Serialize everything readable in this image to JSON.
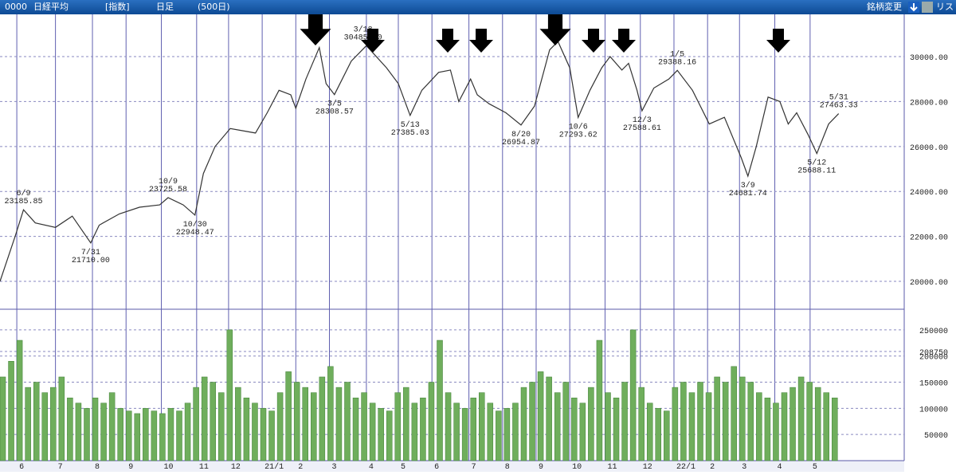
{
  "header": {
    "code": "0000",
    "name": "日経平均",
    "kind": "[指数]",
    "period": "日足",
    "span": "(500日)",
    "button": "銘柄変更",
    "list": "リスト"
  },
  "chart_data": [
    {
      "type": "line",
      "color": "#333333",
      "xlim": [
        0,
        538
      ],
      "ylim": [
        18760,
        31880
      ],
      "yticks": [
        {
          "value": 20000,
          "label": "20000.00"
        },
        {
          "value": 22000,
          "label": "22000.00"
        },
        {
          "value": 24000,
          "label": "24000.00"
        },
        {
          "value": 26000,
          "label": "26000.00"
        },
        {
          "value": 28000,
          "label": "28000.00"
        },
        {
          "value": 30000,
          "label": "30000.00"
        }
      ],
      "grid": true,
      "x": [
        0,
        9,
        14,
        21,
        33,
        43,
        54,
        59,
        71,
        83,
        95,
        100,
        109,
        116,
        121,
        128,
        137,
        152,
        159,
        166,
        173,
        176,
        182,
        190,
        194,
        199,
        209,
        218,
        230,
        237,
        244,
        251,
        261,
        268,
        273,
        280,
        284,
        291,
        301,
        310,
        318,
        327,
        332,
        339,
        344,
        351,
        358,
        363,
        370,
        374,
        379,
        382,
        389,
        398,
        403,
        412,
        422,
        431,
        441,
        445,
        450,
        457,
        464,
        469,
        474,
        481,
        486,
        493,
        499
      ],
      "values": [
        20000,
        22000,
        23185,
        22600,
        22400,
        22900,
        21710,
        22500,
        23000,
        23300,
        23400,
        23725,
        23400,
        22948,
        24800,
        26000,
        26800,
        26600,
        27500,
        28500,
        28300,
        27700,
        29000,
        30400,
        28800,
        28308,
        29800,
        30485,
        29500,
        28800,
        27385,
        28500,
        29300,
        29400,
        28000,
        29000,
        28300,
        27900,
        27500,
        26954,
        27800,
        30300,
        30670,
        29500,
        27293,
        28500,
        29500,
        30000,
        29400,
        29700,
        28500,
        27588,
        28600,
        29000,
        29388,
        28500,
        27000,
        27300,
        25500,
        24681,
        26000,
        28200,
        28000,
        27000,
        27500,
        26500,
        25688,
        27000,
        27463
      ],
      "annotations": [
        {
          "x": 14,
          "date": "6/9",
          "value": 23185.85,
          "label": "23185.85",
          "side": "above"
        },
        {
          "x": 54,
          "date": "7/31",
          "value": 21710,
          "label": "21710.00",
          "side": "below"
        },
        {
          "x": 100,
          "date": "10/9",
          "value": 23725.58,
          "label": "23725.58",
          "side": "above"
        },
        {
          "x": 116,
          "date": "10/30",
          "value": 22948.47,
          "label": "22948.47",
          "side": "below"
        },
        {
          "x": 199,
          "date": "3/5",
          "value": 28308.57,
          "label": "28308.57",
          "side": "below"
        },
        {
          "x": 216,
          "date": "3/18",
          "value": 30485,
          "label": "30485.00",
          "side": "above"
        },
        {
          "x": 244,
          "date": "5/13",
          "value": 27385.03,
          "label": "27385.03",
          "side": "below"
        },
        {
          "x": 310,
          "date": "8/20",
          "value": 26954.87,
          "label": "26954.87",
          "side": "below"
        },
        {
          "x": 344,
          "date": "10/6",
          "value": 27293.62,
          "label": "27293.62",
          "side": "below"
        },
        {
          "x": 382,
          "date": "12/3",
          "value": 27588.61,
          "label": "27588.61",
          "side": "below"
        },
        {
          "x": 403,
          "date": "1/5",
          "value": 29388.16,
          "label": "29388.16",
          "side": "above"
        },
        {
          "x": 445,
          "date": "3/9",
          "value": 24681.74,
          "label": "24681.74",
          "side": "below"
        },
        {
          "x": 486,
          "date": "5/12",
          "value": 25688.11,
          "label": "25688.11",
          "side": "below"
        },
        {
          "x": 499,
          "date": "5/31",
          "value": 27463.33,
          "label": "27463.33",
          "side": "above"
        }
      ]
    },
    {
      "type": "bar",
      "color": "#6fae5c",
      "xlim": [
        0,
        538
      ],
      "ylim": [
        0,
        289400
      ],
      "yticks": [
        50000,
        100000,
        150000,
        200000,
        208750,
        250000
      ],
      "grid": true,
      "xticks": [
        {
          "value": 10,
          "label": "6"
        },
        {
          "value": 33,
          "label": "7"
        },
        {
          "value": 55,
          "label": "8"
        },
        {
          "value": 75,
          "label": "9"
        },
        {
          "value": 96,
          "label": "10"
        },
        {
          "value": 117,
          "label": "11"
        },
        {
          "value": 136,
          "label": "12"
        },
        {
          "value": 156,
          "label": "21/1"
        },
        {
          "value": 176,
          "label": "2"
        },
        {
          "value": 196,
          "label": "3"
        },
        {
          "value": 218,
          "label": "4"
        },
        {
          "value": 237,
          "label": "5"
        },
        {
          "value": 257,
          "label": "6"
        },
        {
          "value": 279,
          "label": "7"
        },
        {
          "value": 299,
          "label": "8"
        },
        {
          "value": 319,
          "label": "9"
        },
        {
          "value": 339,
          "label": "10"
        },
        {
          "value": 360,
          "label": "11"
        },
        {
          "value": 381,
          "label": "12"
        },
        {
          "value": 401,
          "label": "22/1"
        },
        {
          "value": 421,
          "label": "2"
        },
        {
          "value": 440,
          "label": "3"
        },
        {
          "value": 461,
          "label": "4"
        },
        {
          "value": 482,
          "label": "5"
        }
      ],
      "x": [
        0,
        5,
        10,
        15,
        20,
        25,
        30,
        35,
        40,
        45,
        50,
        55,
        60,
        65,
        70,
        75,
        80,
        85,
        90,
        95,
        100,
        105,
        110,
        115,
        120,
        125,
        130,
        135,
        140,
        145,
        150,
        155,
        160,
        165,
        170,
        175,
        180,
        185,
        190,
        195,
        200,
        205,
        210,
        215,
        220,
        225,
        230,
        235,
        240,
        245,
        250,
        255,
        260,
        265,
        270,
        275,
        280,
        285,
        290,
        295,
        300,
        305,
        310,
        315,
        320,
        325,
        330,
        335,
        340,
        345,
        350,
        355,
        360,
        365,
        370,
        375,
        380,
        385,
        390,
        395,
        400,
        405,
        410,
        415,
        420,
        425,
        430,
        435,
        440,
        445,
        450,
        455,
        460,
        465,
        470,
        475,
        480,
        485,
        490,
        495
      ],
      "values": [
        160000,
        190000,
        230000,
        140000,
        150000,
        130000,
        140000,
        160000,
        120000,
        110000,
        100000,
        120000,
        110000,
        130000,
        100000,
        95000,
        90000,
        100000,
        95000,
        90000,
        100000,
        95000,
        110000,
        140000,
        160000,
        150000,
        130000,
        250000,
        140000,
        120000,
        110000,
        100000,
        95000,
        130000,
        170000,
        150000,
        140000,
        130000,
        160000,
        180000,
        140000,
        150000,
        120000,
        130000,
        110000,
        100000,
        95000,
        130000,
        140000,
        110000,
        120000,
        150000,
        230000,
        130000,
        110000,
        100000,
        120000,
        130000,
        110000,
        95000,
        100000,
        110000,
        140000,
        150000,
        170000,
        160000,
        130000,
        150000,
        120000,
        110000,
        140000,
        230000,
        130000,
        120000,
        150000,
        250000,
        140000,
        110000,
        100000,
        95000,
        140000,
        150000,
        130000,
        150000,
        130000,
        160000,
        150000,
        180000,
        160000,
        150000,
        130000,
        120000,
        110000,
        130000,
        140000,
        160000,
        150000,
        140000,
        130000,
        120000
      ]
    }
  ]
}
